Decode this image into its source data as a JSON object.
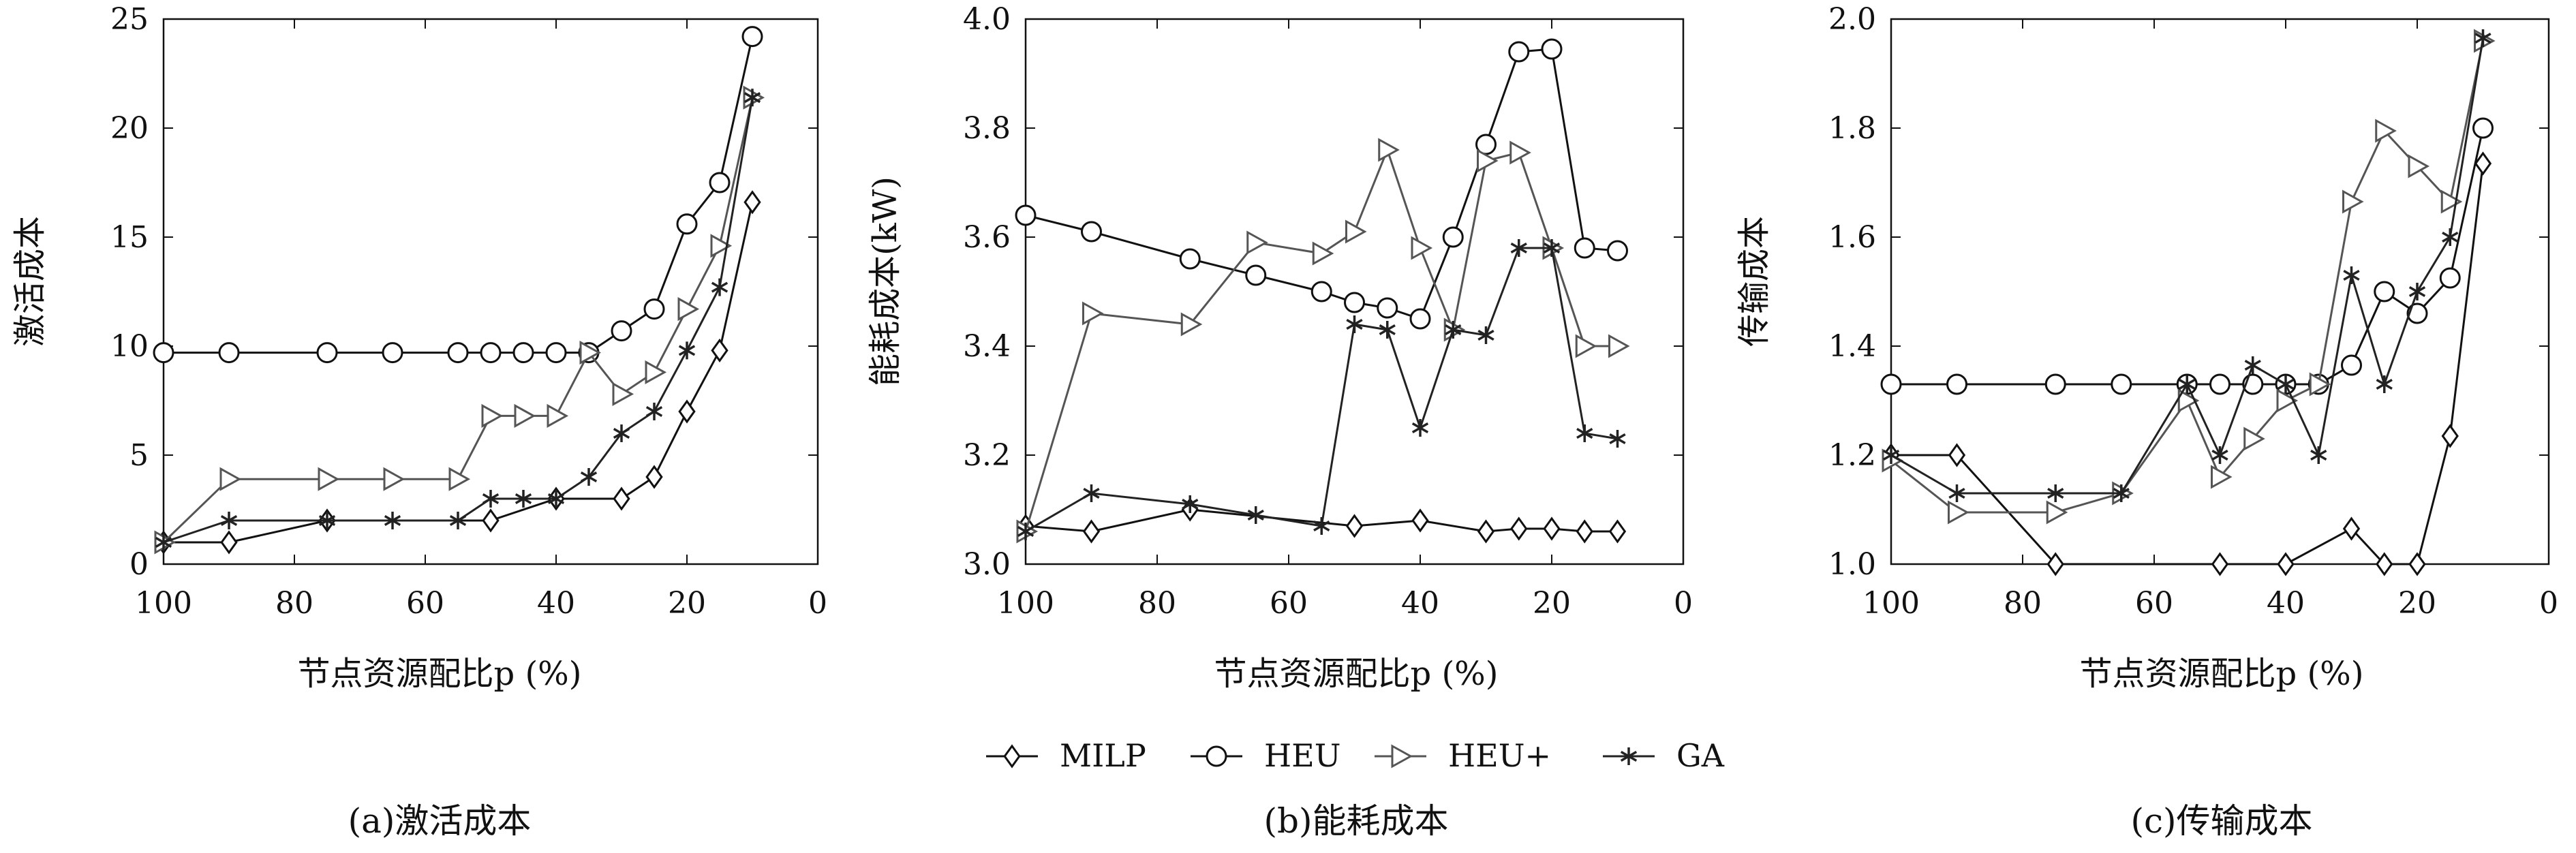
{
  "legend": [
    "MILP",
    "HEU",
    "HEU+",
    "GA"
  ],
  "series_styles": [
    {
      "name": "MILP",
      "marker": "diamond",
      "color": "#111111"
    },
    {
      "name": "HEU",
      "marker": "circle",
      "color": "#111111"
    },
    {
      "name": "HEU+",
      "marker": "triangle-right",
      "color": "#555555"
    },
    {
      "name": "GA",
      "marker": "asterisk",
      "color": "#222222"
    }
  ],
  "chart_data": [
    {
      "type": "line",
      "caption": "(a)激活成本",
      "xlabel": "节点资源配比p (%)",
      "ylabel": "激活成本",
      "xlim": [
        100,
        0
      ],
      "ylim": [
        0,
        25
      ],
      "xticks": [
        100,
        80,
        60,
        40,
        20,
        0
      ],
      "yticks": [
        0,
        5,
        10,
        15,
        20,
        25
      ],
      "ytick_labels": [
        "0",
        "5",
        "10",
        "15",
        "20",
        "25"
      ],
      "grid": false,
      "series": [
        {
          "name": "MILP",
          "x": [
            100,
            90,
            75,
            50,
            40,
            30,
            25,
            20,
            15,
            10
          ],
          "y": [
            1,
            1,
            2,
            2,
            3,
            3,
            4,
            7,
            9.8,
            16.6
          ]
        },
        {
          "name": "HEU",
          "x": [
            100,
            90,
            75,
            65,
            55,
            50,
            45,
            40,
            35,
            30,
            25,
            20,
            15,
            10
          ],
          "y": [
            9.7,
            9.7,
            9.7,
            9.7,
            9.7,
            9.7,
            9.7,
            9.7,
            9.7,
            10.7,
            11.7,
            15.6,
            17.5,
            24.2
          ]
        },
        {
          "name": "HEU+",
          "x": [
            100,
            90,
            75,
            65,
            55,
            50,
            45,
            40,
            35,
            30,
            25,
            20,
            15,
            10
          ],
          "y": [
            1,
            3.9,
            3.9,
            3.9,
            3.9,
            6.8,
            6.8,
            6.8,
            9.7,
            7.8,
            8.8,
            11.7,
            14.6,
            21.4
          ]
        },
        {
          "name": "GA",
          "x": [
            100,
            90,
            75,
            65,
            55,
            50,
            45,
            40,
            35,
            30,
            25,
            20,
            15,
            10
          ],
          "y": [
            1,
            2,
            2,
            2,
            2,
            3,
            3,
            3,
            4,
            6,
            7,
            9.8,
            12.7,
            21.4
          ]
        }
      ]
    },
    {
      "type": "line",
      "caption": "(b)能耗成本",
      "xlabel": "节点资源配比p (%)",
      "ylabel": "能耗成本(kW)",
      "xlim": [
        100,
        0
      ],
      "ylim": [
        3.0,
        4.0
      ],
      "xticks": [
        100,
        80,
        60,
        40,
        20,
        0
      ],
      "yticks": [
        3.0,
        3.2,
        3.4,
        3.6,
        3.8,
        4.0
      ],
      "ytick_labels": [
        "3.0",
        "3.2",
        "3.4",
        "3.6",
        "3.8",
        "4.0"
      ],
      "grid": false,
      "series": [
        {
          "name": "MILP",
          "x": [
            100,
            90,
            75,
            50,
            40,
            30,
            25,
            20,
            15,
            10
          ],
          "y": [
            3.07,
            3.06,
            3.1,
            3.07,
            3.08,
            3.06,
            3.065,
            3.065,
            3.06,
            3.06
          ]
        },
        {
          "name": "HEU",
          "x": [
            100,
            90,
            75,
            65,
            55,
            50,
            45,
            40,
            35,
            30,
            25,
            20,
            15,
            10
          ],
          "y": [
            3.64,
            3.61,
            3.56,
            3.53,
            3.5,
            3.48,
            3.47,
            3.45,
            3.6,
            3.77,
            3.94,
            3.945,
            3.58,
            3.575
          ]
        },
        {
          "name": "HEU+",
          "x": [
            100,
            90,
            75,
            65,
            55,
            50,
            45,
            40,
            35,
            30,
            25,
            20,
            15,
            10
          ],
          "y": [
            3.06,
            3.46,
            3.44,
            3.59,
            3.57,
            3.61,
            3.76,
            3.58,
            3.43,
            3.74,
            3.755,
            3.58,
            3.4,
            3.4
          ]
        },
        {
          "name": "GA",
          "x": [
            100,
            90,
            75,
            65,
            55,
            50,
            45,
            40,
            35,
            30,
            25,
            20,
            15,
            10
          ],
          "y": [
            3.06,
            3.13,
            3.11,
            3.09,
            3.07,
            3.44,
            3.43,
            3.25,
            3.43,
            3.42,
            3.58,
            3.58,
            3.24,
            3.23
          ]
        }
      ]
    },
    {
      "type": "line",
      "caption": "(c)传输成本",
      "xlabel": "节点资源配比p (%)",
      "ylabel": "传输成本",
      "xlim": [
        100,
        0
      ],
      "ylim": [
        1.0,
        2.0
      ],
      "xticks": [
        100,
        80,
        60,
        40,
        20,
        0
      ],
      "yticks": [
        1.0,
        1.2,
        1.4,
        1.6,
        1.8,
        2.0
      ],
      "ytick_labels": [
        "1.0",
        "1.2",
        "1.4",
        "1.6",
        "1.8",
        "2.0"
      ],
      "grid": false,
      "series": [
        {
          "name": "MILP",
          "x": [
            100,
            90,
            75,
            50,
            40,
            30,
            25,
            20,
            15,
            10
          ],
          "y": [
            1.2,
            1.2,
            1.0,
            1.0,
            1.0,
            1.065,
            1.0,
            1.0,
            1.235,
            1.735
          ]
        },
        {
          "name": "HEU",
          "x": [
            100,
            90,
            75,
            65,
            55,
            50,
            45,
            40,
            35,
            30,
            25,
            20,
            15,
            10
          ],
          "y": [
            1.33,
            1.33,
            1.33,
            1.33,
            1.33,
            1.33,
            1.33,
            1.33,
            1.33,
            1.365,
            1.5,
            1.46,
            1.525,
            1.8
          ]
        },
        {
          "name": "HEU+",
          "x": [
            100,
            90,
            75,
            65,
            55,
            50,
            45,
            40,
            35,
            30,
            25,
            20,
            15,
            10
          ],
          "y": [
            1.19,
            1.095,
            1.095,
            1.13,
            1.3,
            1.16,
            1.23,
            1.3,
            1.33,
            1.665,
            1.795,
            1.73,
            1.665,
            1.96
          ]
        },
        {
          "name": "GA",
          "x": [
            100,
            90,
            75,
            65,
            55,
            50,
            45,
            40,
            35,
            30,
            25,
            20,
            15,
            10
          ],
          "y": [
            1.2,
            1.13,
            1.13,
            1.13,
            1.33,
            1.2,
            1.365,
            1.33,
            1.2,
            1.53,
            1.33,
            1.5,
            1.6,
            1.965
          ]
        }
      ]
    }
  ]
}
